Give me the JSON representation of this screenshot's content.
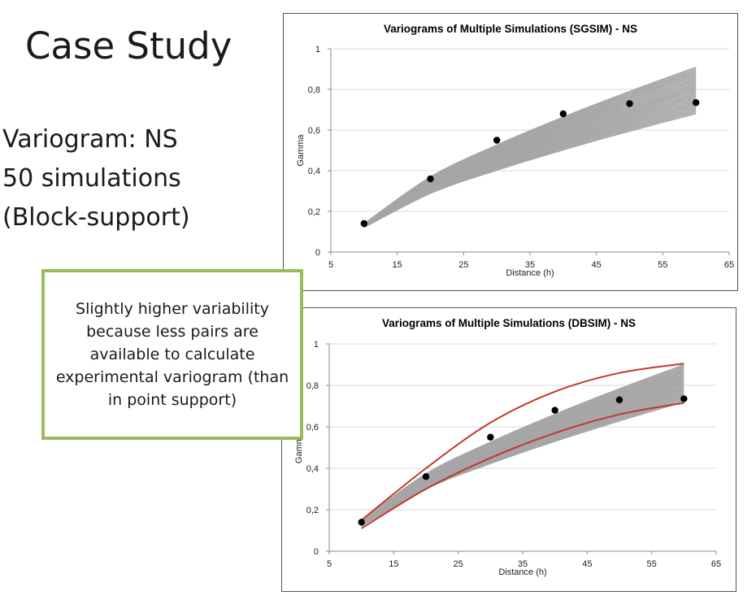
{
  "slide": {
    "title": "Case Study",
    "lines": [
      "Variogram: NS",
      "50 simulations",
      "(Block-support)"
    ],
    "note": "Slightly higher variability because less pairs are available to calculate experimental variogram (than in point support)"
  },
  "colors": {
    "sim_lines": "#a6a6a6",
    "envelope": "#c0392b",
    "points": "#000000",
    "note_border": "#9bbb59"
  },
  "chart_data": [
    {
      "type": "line",
      "title": "Variograms of Multiple Simulations (SGSIM) - NS",
      "xlabel": "Distance (h)",
      "ylabel": "Gamma",
      "xlim": [
        5,
        65
      ],
      "ylim": [
        0,
        1
      ],
      "xticks": [
        5,
        15,
        25,
        35,
        45,
        55,
        65
      ],
      "yticks": [
        0,
        0.2,
        0.4,
        0.6,
        0.8,
        1
      ],
      "xtick_labels": [
        "5",
        "15",
        "25",
        "35",
        "45",
        "55",
        "65"
      ],
      "ytick_labels": [
        "0",
        "0,2",
        "0,4",
        "0,6",
        "0,8",
        "1"
      ],
      "grid": "horizontal",
      "sim_count": 50,
      "sim_x": [
        10,
        20,
        30,
        40,
        50,
        60
      ],
      "sim_start": [
        0.12,
        0.14
      ],
      "sim_end": [
        0.68,
        0.91
      ],
      "experimental": {
        "x": [
          10,
          20,
          30,
          40,
          50,
          60
        ],
        "y": [
          0.14,
          0.36,
          0.55,
          0.68,
          0.73,
          0.735
        ]
      }
    },
    {
      "type": "line",
      "title": "Variograms of Multiple Simulations (DBSIM) - NS",
      "xlabel": "Distance (h)",
      "ylabel": "Gamma",
      "xlim": [
        5,
        65
      ],
      "ylim": [
        0,
        1
      ],
      "xticks": [
        5,
        15,
        25,
        35,
        45,
        55,
        65
      ],
      "yticks": [
        0,
        0.2,
        0.4,
        0.6,
        0.8,
        1
      ],
      "xtick_labels": [
        "5",
        "15",
        "25",
        "35",
        "45",
        "55",
        "65"
      ],
      "ytick_labels": [
        "0",
        "0,2",
        "0,4",
        "0,6",
        "0,8",
        "1"
      ],
      "grid": "horizontal",
      "sim_count": 50,
      "sim_x": [
        10,
        20,
        30,
        40,
        50,
        60
      ],
      "sim_start": [
        0.12,
        0.15
      ],
      "sim_end": [
        0.72,
        0.9
      ],
      "envelope": {
        "upper": {
          "x": [
            10,
            20,
            30,
            40,
            50,
            60
          ],
          "y": [
            0.15,
            0.4,
            0.62,
            0.77,
            0.86,
            0.905
          ]
        },
        "lower": {
          "x": [
            10,
            20,
            30,
            40,
            50,
            60
          ],
          "y": [
            0.11,
            0.3,
            0.45,
            0.57,
            0.66,
            0.715
          ]
        }
      },
      "experimental": {
        "x": [
          10,
          20,
          30,
          40,
          50,
          60
        ],
        "y": [
          0.14,
          0.36,
          0.55,
          0.68,
          0.73,
          0.735
        ]
      }
    }
  ]
}
